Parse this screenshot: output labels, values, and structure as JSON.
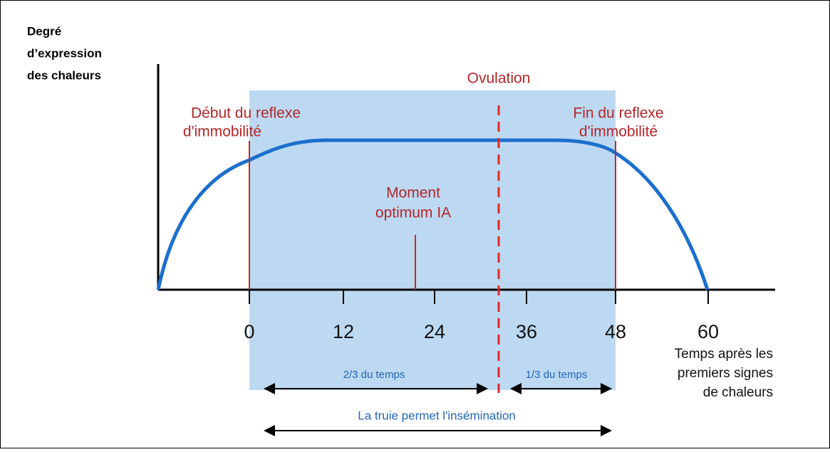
{
  "y_axis_label": [
    "Degré",
    "d’expression",
    "des chaleurs"
  ],
  "x_ticks": [
    0,
    12,
    24,
    36,
    48,
    60
  ],
  "x_axis_label": [
    "Temps après les",
    "premiers signes",
    "de chaleurs"
  ],
  "ovulation": "Ovulation",
  "start_reflex": [
    "Début du reflexe",
    "d'immobilité"
  ],
  "end_reflex": [
    "Fin du reflexe",
    "d'immobilité"
  ],
  "optimum": [
    "Moment",
    "optimum IA"
  ],
  "two_thirds": "2/3 du temps",
  "one_third": "1/3 du temps",
  "insemination": "La truie permet l'insémination"
}
